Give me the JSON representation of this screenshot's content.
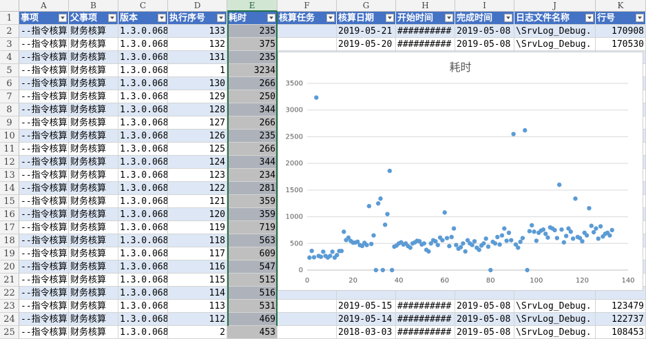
{
  "columns": {
    "letters": [
      "A",
      "B",
      "C",
      "D",
      "E",
      "F",
      "G",
      "H",
      "I",
      "J",
      "K"
    ],
    "headers": [
      "事项",
      "父事项",
      "版本",
      "执行序号",
      "耗时",
      "核算任务",
      "核算日期",
      "开始时间",
      "完成时间",
      "日志文件名称",
      "行号"
    ]
  },
  "rows": [
    {
      "n": "2",
      "a": "--指令核算",
      "b": "财务核算",
      "c": "1.3.0.068",
      "d": "133",
      "e": "235",
      "g": "2019-05-21",
      "h": "##########",
      "i": "2019-05-08",
      "j": "\\SrvLog_Debug.",
      "k": "170908"
    },
    {
      "n": "3",
      "a": "--指令核算",
      "b": "财务核算",
      "c": "1.3.0.068",
      "d": "132",
      "e": "375",
      "g": "2019-05-20",
      "h": "##########",
      "i": "2019-05-08",
      "j": "\\SrvLog_Debug.",
      "k": "170530"
    },
    {
      "n": "4",
      "a": "--指令核算",
      "b": "财务核算",
      "c": "1.3.0.068",
      "d": "131",
      "e": "235"
    },
    {
      "n": "5",
      "a": "--指令核算",
      "b": "财务核算",
      "c": "1.3.0.068",
      "d": "1",
      "e": "3234"
    },
    {
      "n": "6",
      "a": "--指令核算",
      "b": "财务核算",
      "c": "1.3.0.068",
      "d": "130",
      "e": "266"
    },
    {
      "n": "7",
      "a": "--指令核算",
      "b": "财务核算",
      "c": "1.3.0.068",
      "d": "129",
      "e": "250"
    },
    {
      "n": "8",
      "a": "--指令核算",
      "b": "财务核算",
      "c": "1.3.0.068",
      "d": "128",
      "e": "344"
    },
    {
      "n": "9",
      "a": "--指令核算",
      "b": "财务核算",
      "c": "1.3.0.068",
      "d": "127",
      "e": "266"
    },
    {
      "n": "10",
      "a": "--指令核算",
      "b": "财务核算",
      "c": "1.3.0.068",
      "d": "126",
      "e": "235"
    },
    {
      "n": "11",
      "a": "--指令核算",
      "b": "财务核算",
      "c": "1.3.0.068",
      "d": "125",
      "e": "266"
    },
    {
      "n": "12",
      "a": "--指令核算",
      "b": "财务核算",
      "c": "1.3.0.068",
      "d": "124",
      "e": "344"
    },
    {
      "n": "13",
      "a": "--指令核算",
      "b": "财务核算",
      "c": "1.3.0.068",
      "d": "123",
      "e": "234"
    },
    {
      "n": "14",
      "a": "--指令核算",
      "b": "财务核算",
      "c": "1.3.0.068",
      "d": "122",
      "e": "281"
    },
    {
      "n": "15",
      "a": "--指令核算",
      "b": "财务核算",
      "c": "1.3.0.068",
      "d": "121",
      "e": "359"
    },
    {
      "n": "16",
      "a": "--指令核算",
      "b": "财务核算",
      "c": "1.3.0.068",
      "d": "120",
      "e": "359"
    },
    {
      "n": "17",
      "a": "--指令核算",
      "b": "财务核算",
      "c": "1.3.0.068",
      "d": "119",
      "e": "719"
    },
    {
      "n": "18",
      "a": "--指令核算",
      "b": "财务核算",
      "c": "1.3.0.068",
      "d": "118",
      "e": "563"
    },
    {
      "n": "19",
      "a": "--指令核算",
      "b": "财务核算",
      "c": "1.3.0.068",
      "d": "117",
      "e": "609"
    },
    {
      "n": "20",
      "a": "--指令核算",
      "b": "财务核算",
      "c": "1.3.0.068",
      "d": "116",
      "e": "547"
    },
    {
      "n": "21",
      "a": "--指令核算",
      "b": "财务核算",
      "c": "1.3.0.068",
      "d": "115",
      "e": "515"
    },
    {
      "n": "22",
      "a": "--指令核算",
      "b": "财务核算",
      "c": "1.3.0.068",
      "d": "114",
      "e": "516"
    },
    {
      "n": "23",
      "a": "--指令核算",
      "b": "财务核算",
      "c": "1.3.0.068",
      "d": "113",
      "e": "531",
      "g": "2019-05-15",
      "h": "##########",
      "i": "2019-05-08",
      "j": "\\SrvLog_Debug.",
      "k": "123479"
    },
    {
      "n": "24",
      "a": "--指令核算",
      "b": "财务核算",
      "c": "1.3.0.068",
      "d": "112",
      "e": "469",
      "g": "2019-05-14",
      "h": "##########",
      "i": "2019-05-08",
      "j": "\\SrvLog_Debug.",
      "k": "122737"
    },
    {
      "n": "25",
      "a": "--指令核算",
      "b": "财务核算",
      "c": "1.3.0.068",
      "d": "2",
      "e": "453",
      "g": "2018-03-03",
      "h": "##########",
      "i": "2019-05-08",
      "j": "\\SrvLog_Debug.",
      "k": "108453"
    }
  ],
  "chart_data": {
    "type": "scatter",
    "title": "耗时",
    "xlabel": "",
    "ylabel": "",
    "xlim": [
      0,
      140
    ],
    "ylim": [
      0,
      3500
    ],
    "xticks": [
      0,
      20,
      40,
      60,
      80,
      100,
      120,
      140
    ],
    "yticks": [
      0,
      500,
      1000,
      1500,
      2000,
      2500,
      3000,
      3500
    ],
    "grid": "horizontal",
    "series": [
      {
        "color": "#5b9bd5",
        "points": [
          [
            1,
            234
          ],
          [
            2,
            360
          ],
          [
            3,
            240
          ],
          [
            4,
            3234
          ],
          [
            5,
            265
          ],
          [
            6,
            250
          ],
          [
            7,
            345
          ],
          [
            8,
            266
          ],
          [
            9,
            236
          ],
          [
            10,
            266
          ],
          [
            11,
            344
          ],
          [
            12,
            235
          ],
          [
            13,
            282
          ],
          [
            14,
            358
          ],
          [
            15,
            359
          ],
          [
            16,
            719
          ],
          [
            17,
            563
          ],
          [
            18,
            609
          ],
          [
            19,
            547
          ],
          [
            20,
            515
          ],
          [
            21,
            516
          ],
          [
            22,
            531
          ],
          [
            23,
            469
          ],
          [
            24,
            453
          ],
          [
            25,
            510
          ],
          [
            26,
            470
          ],
          [
            27,
            1200
          ],
          [
            28,
            490
          ],
          [
            29,
            650
          ],
          [
            30,
            0
          ],
          [
            31,
            1250
          ],
          [
            32,
            1340
          ],
          [
            33,
            0
          ],
          [
            34,
            850
          ],
          [
            35,
            1050
          ],
          [
            36,
            1860
          ],
          [
            37,
            0
          ],
          [
            38,
            440
          ],
          [
            39,
            460
          ],
          [
            40,
            500
          ],
          [
            41,
            520
          ],
          [
            42,
            480
          ],
          [
            43,
            500
          ],
          [
            44,
            450
          ],
          [
            45,
            420
          ],
          [
            46,
            500
          ],
          [
            47,
            520
          ],
          [
            48,
            550
          ],
          [
            49,
            540
          ],
          [
            50,
            480
          ],
          [
            51,
            500
          ],
          [
            52,
            380
          ],
          [
            53,
            350
          ],
          [
            54,
            500
          ],
          [
            55,
            560
          ],
          [
            56,
            540
          ],
          [
            57,
            470
          ],
          [
            58,
            610
          ],
          [
            59,
            560
          ],
          [
            60,
            1080
          ],
          [
            61,
            600
          ],
          [
            62,
            450
          ],
          [
            63,
            620
          ],
          [
            64,
            780
          ],
          [
            65,
            470
          ],
          [
            66,
            400
          ],
          [
            67,
            430
          ],
          [
            68,
            500
          ],
          [
            69,
            350
          ],
          [
            70,
            560
          ],
          [
            71,
            500
          ],
          [
            72,
            470
          ],
          [
            73,
            540
          ],
          [
            74,
            420
          ],
          [
            75,
            380
          ],
          [
            76,
            460
          ],
          [
            77,
            500
          ],
          [
            78,
            590
          ],
          [
            79,
            440
          ],
          [
            80,
            0
          ],
          [
            81,
            530
          ],
          [
            82,
            500
          ],
          [
            83,
            620
          ],
          [
            84,
            480
          ],
          [
            85,
            650
          ],
          [
            86,
            780
          ],
          [
            87,
            550
          ],
          [
            88,
            700
          ],
          [
            89,
            560
          ],
          [
            90,
            2550
          ],
          [
            91,
            480
          ],
          [
            92,
            420
          ],
          [
            93,
            530
          ],
          [
            94,
            600
          ],
          [
            95,
            2620
          ],
          [
            96,
            0
          ],
          [
            97,
            730
          ],
          [
            98,
            840
          ],
          [
            99,
            720
          ],
          [
            100,
            550
          ],
          [
            101,
            700
          ],
          [
            102,
            740
          ],
          [
            103,
            760
          ],
          [
            104,
            680
          ],
          [
            105,
            610
          ],
          [
            106,
            800
          ],
          [
            107,
            780
          ],
          [
            108,
            750
          ],
          [
            109,
            600
          ],
          [
            110,
            1600
          ],
          [
            111,
            760
          ],
          [
            112,
            520
          ],
          [
            113,
            640
          ],
          [
            114,
            780
          ],
          [
            115,
            720
          ],
          [
            116,
            590
          ],
          [
            117,
            1340
          ],
          [
            118,
            620
          ],
          [
            119,
            600
          ],
          [
            120,
            540
          ],
          [
            121,
            700
          ],
          [
            122,
            650
          ],
          [
            123,
            1160
          ],
          [
            124,
            830
          ],
          [
            125,
            710
          ],
          [
            126,
            780
          ],
          [
            127,
            590
          ],
          [
            128,
            820
          ],
          [
            129,
            630
          ],
          [
            130,
            680
          ],
          [
            131,
            700
          ],
          [
            132,
            650
          ],
          [
            133,
            750
          ]
        ]
      }
    ]
  }
}
